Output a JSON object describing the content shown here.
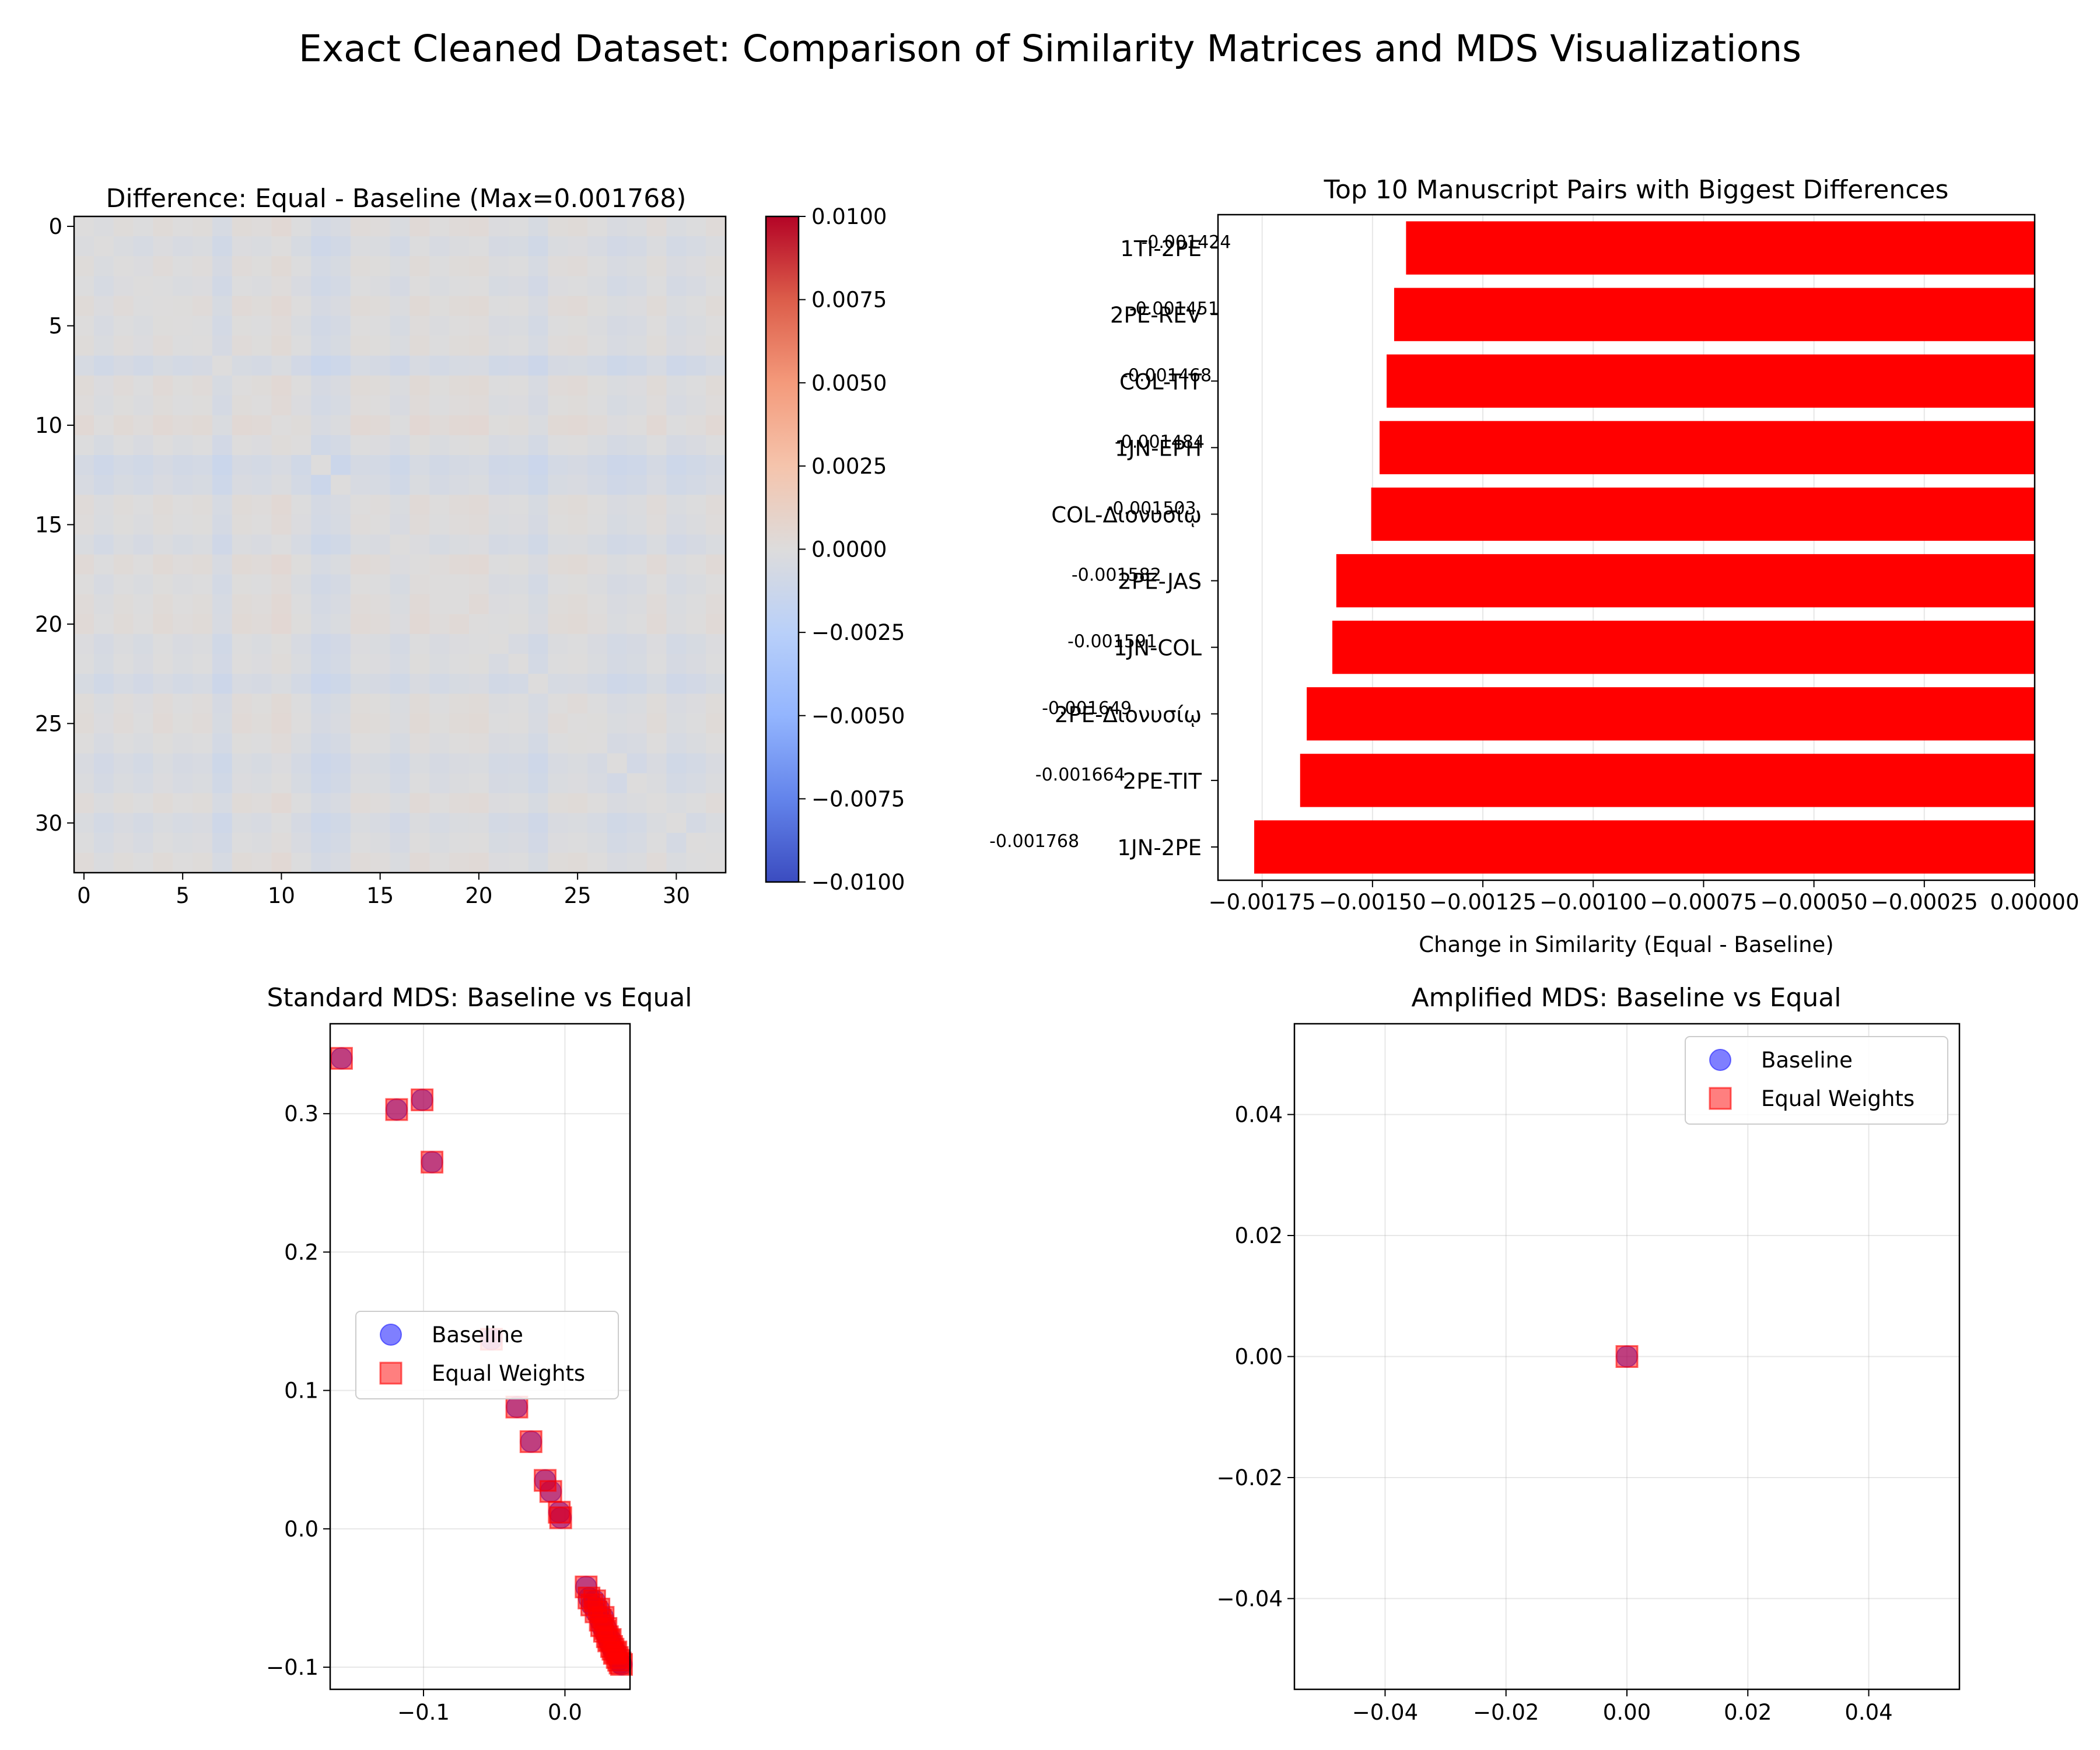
{
  "suptitle": "Exact Cleaned Dataset: Comparison of Similarity Matrices and MDS Visualizations",
  "chart_data": [
    {
      "type": "heatmap",
      "title": "Difference: Equal - Baseline (Max=0.001768)",
      "size": 33,
      "colormap": "coolwarm",
      "vmin": -0.01,
      "vmax": 0.01,
      "xticks": [
        0,
        5,
        10,
        15,
        20,
        25,
        30
      ],
      "yticks": [
        0,
        5,
        10,
        15,
        20,
        25,
        30
      ],
      "row_offsets": [
        0.0002,
        -0.0006,
        0.0001,
        -0.0004,
        0.0003,
        -0.0002,
        0.0001,
        -0.0012,
        0.0003,
        0.0,
        0.0006,
        -0.0003,
        -0.0014,
        -0.001,
        0.0002,
        0.0,
        -0.0007,
        0.0004,
        -0.0002,
        0.0002,
        0.0004,
        -0.0005,
        -0.0003,
        -0.0011,
        0.0001,
        0.0003,
        -0.0002,
        -0.0009,
        -0.0006,
        0.0002,
        -0.0008,
        -0.0004,
        0.0002
      ],
      "colorbar_ticks": [
        0.01,
        0.0075,
        0.005,
        0.0025,
        0.0,
        -0.0025,
        -0.005,
        -0.0075,
        -0.01
      ],
      "colorbar_tick_labels": [
        "0.0100",
        "0.0075",
        "0.0050",
        "0.0025",
        "0.0000",
        "−0.0025",
        "−0.0050",
        "−0.0075",
        "−0.0100"
      ]
    },
    {
      "type": "bar",
      "orientation": "horizontal",
      "title": "Top 10 Manuscript Pairs with Biggest Differences",
      "xlabel": "Change in Similarity (Equal - Baseline)",
      "categories": [
        "1TI-2PE",
        "2PE-REV",
        "COL-TIT",
        "1JN-EPH",
        "COL-Διονυσίῳ",
        "2PE-JAS",
        "1JN-COL",
        "2PE-Διονυσίῳ",
        "2PE-TIT",
        "1JN-2PE"
      ],
      "values": [
        -0.001424,
        -0.001451,
        -0.001468,
        -0.001484,
        -0.001503,
        -0.001582,
        -0.001591,
        -0.001649,
        -0.001664,
        -0.001768
      ],
      "value_labels": [
        "-0.001424",
        "-0.001451",
        "-0.001468",
        "-0.001484",
        "-0.001503",
        "-0.001582",
        "-0.001591",
        "-0.001649",
        "-0.001664",
        "-0.001768"
      ],
      "xlim": [
        -0.00185,
        0.0
      ],
      "xticks": [
        -0.00175,
        -0.0015,
        -0.00125,
        -0.001,
        -0.00075,
        -0.0005,
        -0.00025,
        0.0
      ],
      "xtick_labels": [
        "−0.00175",
        "−0.00150",
        "−0.00125",
        "−0.00100",
        "−0.00075",
        "−0.00050",
        "−0.00025",
        "0.00000"
      ],
      "bar_color": "#ff0000",
      "grid": true
    },
    {
      "type": "scatter",
      "title": "Standard MDS: Baseline vs Equal",
      "xlim": [
        -0.166,
        0.046
      ],
      "ylim": [
        -0.116,
        0.365
      ],
      "xticks": [
        -0.1,
        0.0
      ],
      "xtick_labels": [
        "−0.1",
        "0.0"
      ],
      "yticks": [
        -0.1,
        0.0,
        0.1,
        0.2,
        0.3
      ],
      "ytick_labels": [
        "−0.1",
        "0.0",
        "0.1",
        "0.2",
        "0.3"
      ],
      "legend": [
        "Baseline",
        "Equal Weights"
      ],
      "legend_position": "center-right",
      "grid": true,
      "series": [
        {
          "name": "Baseline",
          "color": "#0000ff",
          "marker": "circle",
          "x": [
            -0.158,
            -0.119,
            -0.101,
            -0.094,
            -0.052,
            -0.034,
            -0.024,
            -0.014,
            -0.01,
            -0.004,
            -0.003,
            0.015,
            0.017,
            0.019,
            0.021,
            0.022,
            0.024,
            0.025,
            0.026,
            0.027,
            0.028,
            0.029,
            0.03,
            0.031,
            0.032,
            0.033,
            0.034,
            0.035,
            0.036,
            0.037,
            0.038,
            0.039,
            0.04
          ],
          "y": [
            0.34,
            0.303,
            0.31,
            0.265,
            0.137,
            0.088,
            0.063,
            0.035,
            0.027,
            0.012,
            0.008,
            -0.042,
            -0.05,
            -0.055,
            -0.052,
            -0.06,
            -0.058,
            -0.066,
            -0.07,
            -0.064,
            -0.074,
            -0.072,
            -0.078,
            -0.081,
            -0.08,
            -0.085,
            -0.087,
            -0.09,
            -0.089,
            -0.093,
            -0.095,
            -0.097,
            -0.098
          ]
        },
        {
          "name": "Equal Weights",
          "color": "#ff0000",
          "marker": "square",
          "x": [
            -0.158,
            -0.119,
            -0.101,
            -0.094,
            -0.052,
            -0.034,
            -0.024,
            -0.014,
            -0.01,
            -0.004,
            -0.003,
            0.015,
            0.017,
            0.019,
            0.021,
            0.022,
            0.024,
            0.025,
            0.026,
            0.027,
            0.028,
            0.029,
            0.03,
            0.031,
            0.032,
            0.033,
            0.034,
            0.035,
            0.036,
            0.037,
            0.038,
            0.039,
            0.04
          ],
          "y": [
            0.34,
            0.303,
            0.31,
            0.265,
            0.137,
            0.088,
            0.063,
            0.035,
            0.027,
            0.012,
            0.008,
            -0.042,
            -0.05,
            -0.055,
            -0.052,
            -0.06,
            -0.058,
            -0.066,
            -0.07,
            -0.064,
            -0.074,
            -0.072,
            -0.078,
            -0.081,
            -0.08,
            -0.085,
            -0.087,
            -0.09,
            -0.089,
            -0.093,
            -0.095,
            -0.097,
            -0.098
          ]
        }
      ]
    },
    {
      "type": "scatter",
      "title": "Amplified MDS: Baseline vs Equal",
      "xlim": [
        -0.055,
        0.055
      ],
      "ylim": [
        -0.055,
        0.055
      ],
      "xticks": [
        -0.04,
        -0.02,
        0.0,
        0.02,
        0.04
      ],
      "xtick_labels": [
        "−0.04",
        "−0.02",
        "0.00",
        "0.02",
        "0.04"
      ],
      "yticks": [
        -0.04,
        -0.02,
        0.0,
        0.02,
        0.04
      ],
      "ytick_labels": [
        "−0.04",
        "−0.02",
        "0.00",
        "0.02",
        "0.04"
      ],
      "legend": [
        "Baseline",
        "Equal Weights"
      ],
      "legend_position": "upper-right",
      "grid": true,
      "series": [
        {
          "name": "Baseline",
          "color": "#0000ff",
          "marker": "circle",
          "x": [
            0.0
          ],
          "y": [
            0.0
          ]
        },
        {
          "name": "Equal Weights",
          "color": "#ff0000",
          "marker": "square",
          "x": [
            0.0
          ],
          "y": [
            0.0
          ]
        }
      ]
    }
  ]
}
